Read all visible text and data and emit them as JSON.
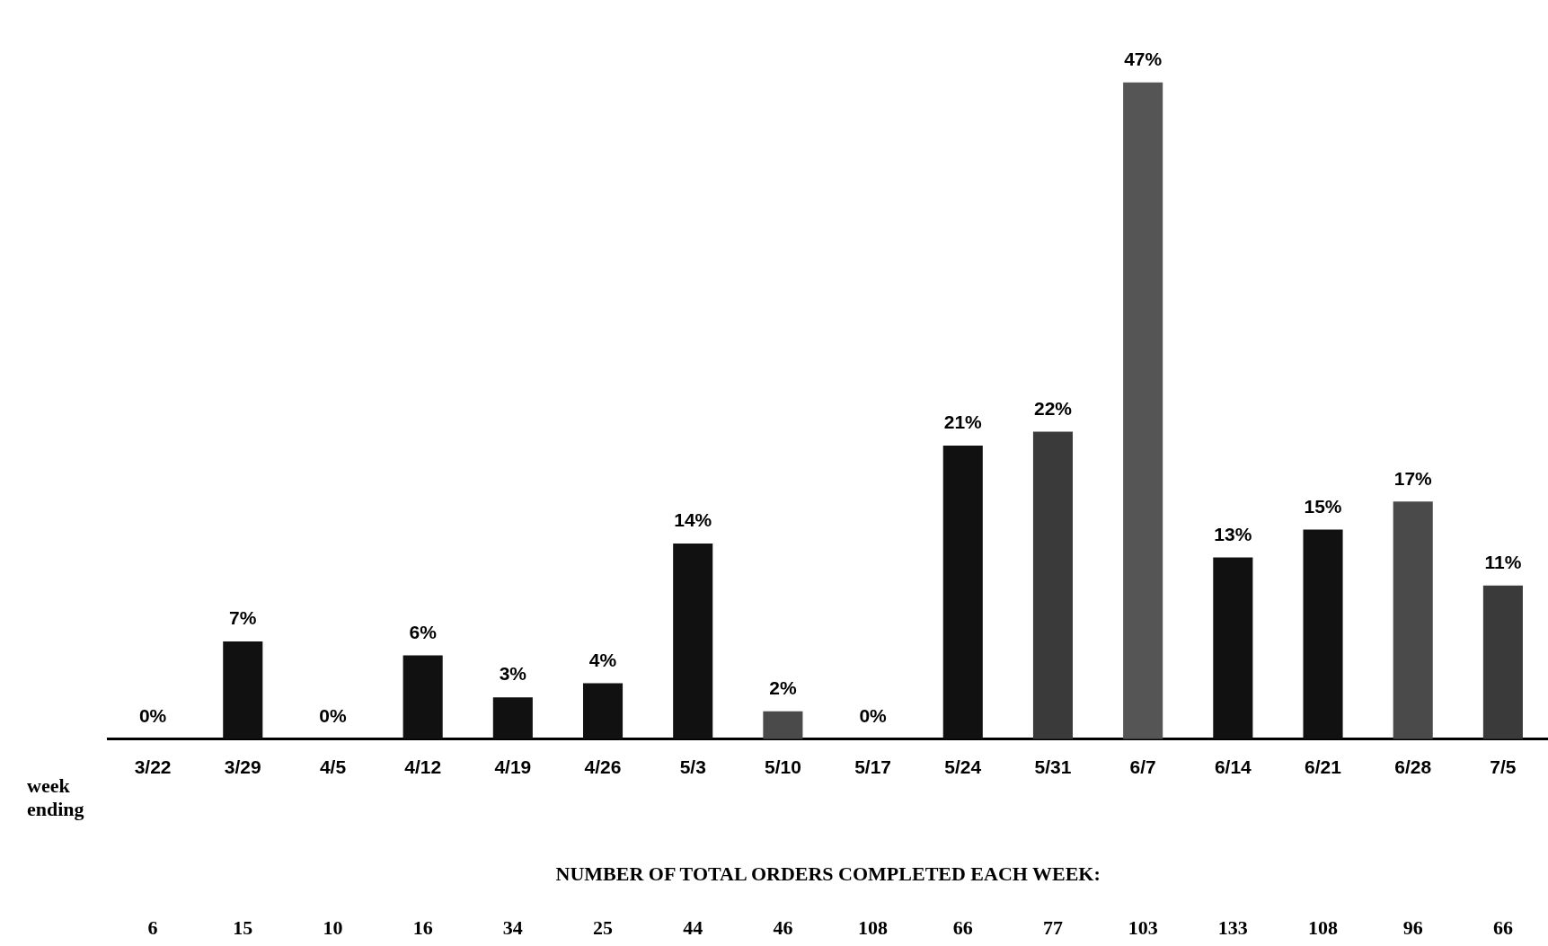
{
  "chart_data": {
    "type": "bar",
    "xlabel": "week ending",
    "categories": [
      "3/22",
      "3/29",
      "4/5",
      "4/12",
      "4/19",
      "4/26",
      "5/3",
      "5/10",
      "5/17",
      "5/24",
      "5/31",
      "6/7",
      "6/14",
      "6/21",
      "6/28",
      "7/5"
    ],
    "values": [
      0,
      7,
      0,
      6,
      3,
      4,
      14,
      2,
      0,
      21,
      22,
      47,
      13,
      15,
      17,
      11
    ],
    "colors": [
      "#111111",
      "#111111",
      "#111111",
      "#111111",
      "#111111",
      "#111111",
      "#111111",
      "#4a4a4a",
      "#111111",
      "#111111",
      "#3a3a3a",
      "#555555",
      "#111111",
      "#111111",
      "#4a4a4a",
      "#3a3a3a"
    ],
    "value_labels": [
      "0%",
      "7%",
      "0%",
      "6%",
      "3%",
      "4%",
      "14%",
      "2%",
      "0%",
      "21%",
      "22%",
      "47%",
      "13%",
      "15%",
      "17%",
      "11%"
    ],
    "grid": false,
    "legend": false,
    "annotations": [
      "NUMBER OF TOTAL ORDERS COMPLETED EACH WEEK:",
      "6",
      "15",
      "10",
      "16",
      "34",
      "25",
      "44",
      "46",
      "108",
      "66",
      "77",
      "103",
      "133",
      "108",
      "96",
      "66"
    ]
  }
}
